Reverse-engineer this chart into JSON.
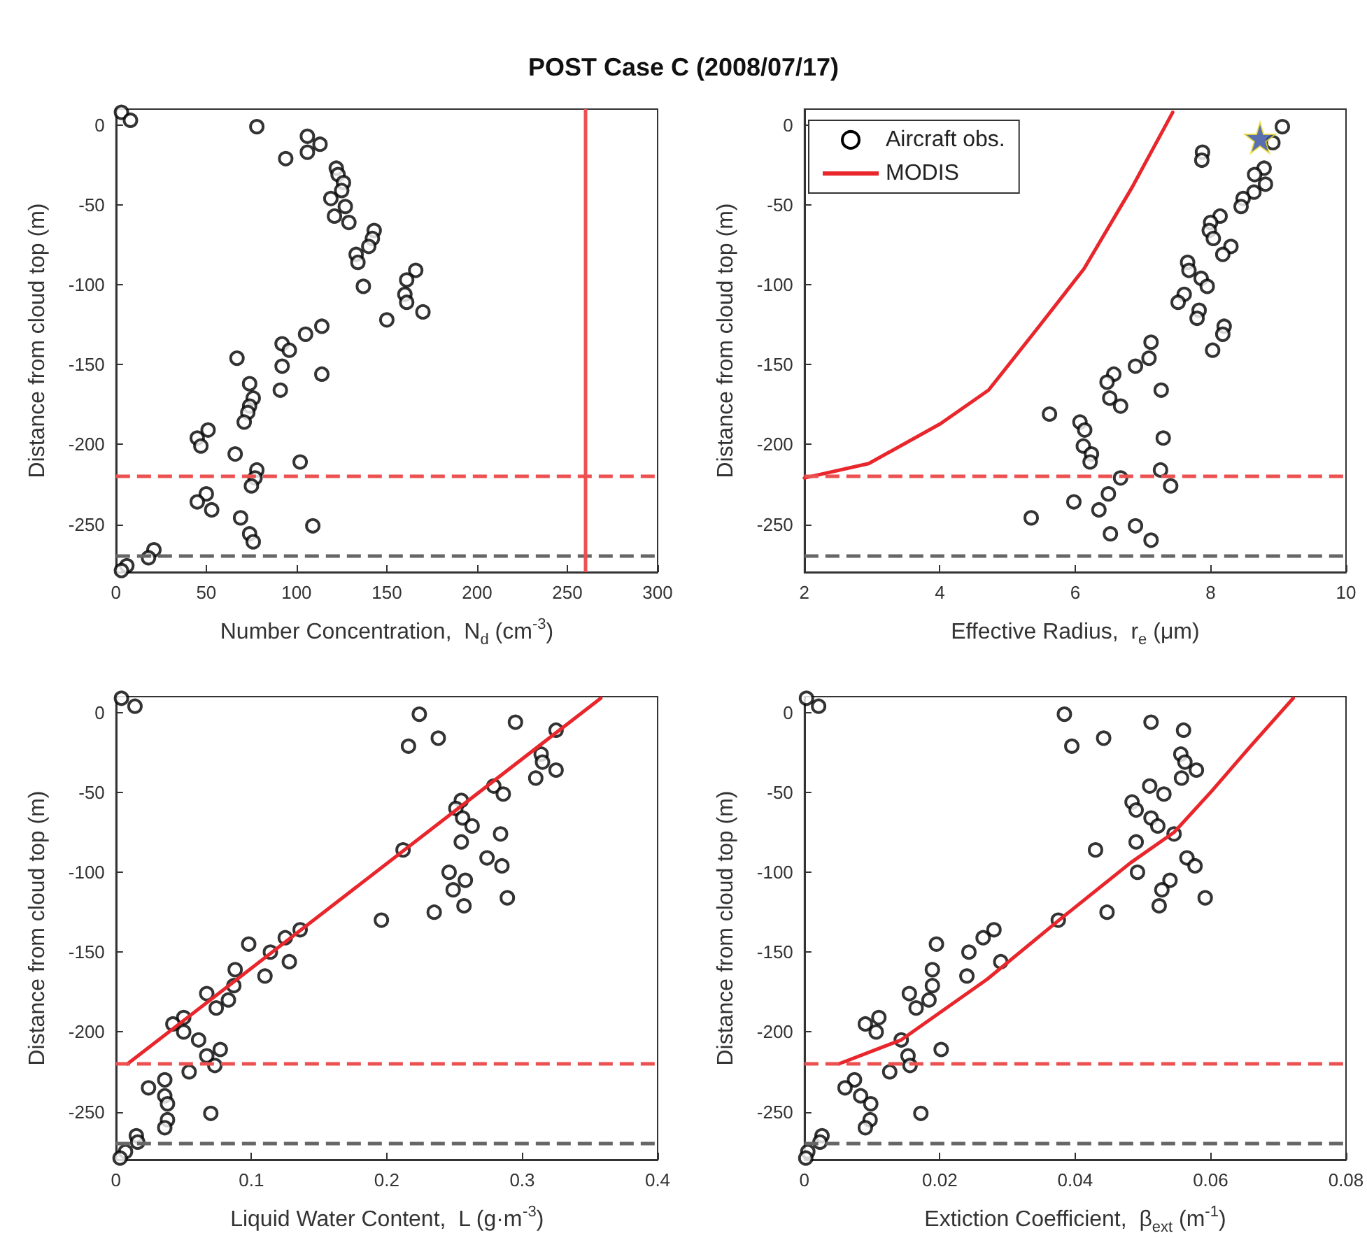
{
  "chart_data": [
    {
      "type": "scatter",
      "title": "POST Case C (2008/07/17)",
      "xlabel": "Number Concentration,  N$_{d}$ (cm$^{-3}$)",
      "ylabel": "Distance from cloud top (m)",
      "xlim": [
        0,
        300
      ],
      "xticks": [
        0,
        50,
        100,
        150,
        200,
        250,
        300
      ],
      "ylim": [
        -280,
        10
      ],
      "yticks": [
        -250,
        -200,
        -150,
        -100,
        -50,
        0
      ],
      "series": [
        {
          "type": "scatter",
          "marker": "circle",
          "color": "#000000",
          "x": [
            3,
            8,
            78,
            106,
            113,
            106,
            94,
            122,
            123,
            126,
            125,
            119,
            127,
            121,
            129,
            143,
            142,
            140,
            133,
            134,
            166,
            161,
            160,
            161,
            170,
            137,
            150,
            114,
            105,
            92,
            96,
            67,
            92,
            114,
            91,
            74,
            76,
            74,
            73,
            71,
            45,
            51,
            47,
            66,
            102,
            78,
            77,
            75,
            50,
            45,
            53,
            69,
            109,
            74,
            76,
            21,
            18,
            6,
            3
          ],
          "values": [
            8,
            3,
            -1,
            -7,
            -12,
            -17,
            -21,
            -27,
            -31,
            -36,
            -41,
            -46,
            -51,
            -57,
            -61,
            -66,
            -71,
            -76,
            -81,
            -86,
            -91,
            -97,
            -106,
            -111,
            -117,
            -101,
            -122,
            -126,
            -131,
            -137,
            -141,
            -146,
            -151,
            -156,
            -166,
            -162,
            -171,
            -176,
            -180,
            -186,
            -196,
            -191,
            -201,
            -206,
            -211,
            -216,
            -221,
            -226,
            -231,
            -236,
            -241,
            -246,
            -251,
            -256,
            -261,
            -266,
            -271,
            -276,
            -279
          ]
        }
      ],
      "ref_lines": [
        {
          "axis": "y",
          "value": -220,
          "color": "#ec5050",
          "line_style": "dashed"
        },
        {
          "axis": "y",
          "value": -270,
          "color": "#666666",
          "line_style": "dashed"
        },
        {
          "axis": "x",
          "value": 260,
          "color": "#ec5050",
          "line_style": "solid"
        }
      ]
    },
    {
      "type": "scatter",
      "xlabel": "Effective Radius,  r$_{e}$ (μm)",
      "ylabel": "Distance from cloud top (m)",
      "xlim": [
        2,
        10
      ],
      "xticks": [
        2,
        4,
        6,
        8,
        10
      ],
      "ylim": [
        -280,
        10
      ],
      "yticks": [
        -250,
        -200,
        -150,
        -100,
        -50,
        0
      ],
      "legend": "top left",
      "series": [
        {
          "name": "Aircraft obs.",
          "type": "scatter",
          "marker": "circle",
          "color": "#000000",
          "x": [
            9.06,
            8.92,
            7.88,
            7.87,
            8.79,
            8.65,
            8.81,
            8.64,
            8.48,
            8.45,
            8.14,
            8.0,
            7.98,
            8.04,
            8.3,
            8.18,
            7.66,
            7.68,
            7.86,
            7.95,
            7.61,
            7.52,
            7.83,
            7.8,
            8.2,
            8.18,
            8.03,
            7.12,
            7.09,
            6.89,
            6.57,
            6.47,
            7.27,
            6.51,
            6.67,
            5.62,
            6.07,
            6.14,
            6.12,
            6.24,
            6.22,
            7.3,
            7.26,
            6.67,
            7.41,
            6.49,
            5.98,
            6.35,
            5.35,
            6.89,
            6.52,
            7.12
          ],
          "values": [
            -1,
            -11,
            -17,
            -22,
            -27,
            -31,
            -37,
            -42,
            -46,
            -51,
            -57,
            -61,
            -66,
            -71,
            -76,
            -81,
            -86,
            -91,
            -96,
            -101,
            -106,
            -111,
            -116,
            -121,
            -126,
            -131,
            -141,
            -136,
            -146,
            -151,
            -156,
            -161,
            -166,
            -171,
            -176,
            -181,
            -186,
            -191,
            -201,
            -206,
            -211,
            -196,
            -216,
            -221,
            -226,
            -231,
            -236,
            -241,
            -246,
            -251,
            -256,
            -260
          ]
        },
        {
          "name": "MODIS",
          "type": "line",
          "color": "#e8262b",
          "x": [
            2.0,
            2.95,
            4.01,
            4.72,
            5.43,
            6.13,
            6.84,
            7.44
          ],
          "values": [
            -221,
            -212,
            -187,
            -166,
            -128,
            -90,
            -39,
            8
          ]
        },
        {
          "type": "scatter",
          "marker": "star",
          "color": "#2f4b9c",
          "x": [
            8.73
          ],
          "values": [
            -8
          ]
        }
      ],
      "ref_lines": [
        {
          "axis": "y",
          "value": -220,
          "color": "#ec5050",
          "line_style": "dashed"
        },
        {
          "axis": "y",
          "value": -270,
          "color": "#666666",
          "line_style": "dashed"
        }
      ]
    },
    {
      "type": "scatter",
      "xlabel": "Liquid Water Content,  L (g·m$^{-3}$)",
      "ylabel": "Distance from cloud top (m)",
      "xlim": [
        0,
        0.4
      ],
      "xticks": [
        0,
        0.1,
        0.2,
        0.3,
        0.4
      ],
      "ylim": [
        -280,
        10
      ],
      "yticks": [
        -250,
        -200,
        -150,
        -100,
        -50,
        0
      ],
      "series": [
        {
          "type": "scatter",
          "marker": "circle",
          "color": "#000000",
          "x": [
            0.004,
            0.014,
            0.224,
            0.216,
            0.238,
            0.295,
            0.325,
            0.314,
            0.315,
            0.325,
            0.31,
            0.279,
            0.286,
            0.255,
            0.251,
            0.256,
            0.263,
            0.284,
            0.255,
            0.212,
            0.274,
            0.285,
            0.246,
            0.258,
            0.249,
            0.289,
            0.257,
            0.235,
            0.196,
            0.136,
            0.125,
            0.114,
            0.098,
            0.128,
            0.11,
            0.088,
            0.087,
            0.083,
            0.067,
            0.074,
            0.05,
            0.042,
            0.05,
            0.061,
            0.067,
            0.077,
            0.073,
            0.054,
            0.036,
            0.024,
            0.036,
            0.038,
            0.07,
            0.038,
            0.036,
            0.015,
            0.016,
            0.007,
            0.003
          ],
          "values": [
            9,
            4,
            -1,
            -21,
            -16,
            -6,
            -11,
            -26,
            -31,
            -36,
            -41,
            -46,
            -51,
            -55,
            -60,
            -66,
            -71,
            -76,
            -81,
            -86,
            -91,
            -96,
            -100,
            -105,
            -111,
            -116,
            -121,
            -125,
            -130,
            -136,
            -141,
            -150,
            -145,
            -156,
            -165,
            -161,
            -171,
            -180,
            -176,
            -185,
            -191,
            -195,
            -200,
            -205,
            -215,
            -211,
            -221,
            -225,
            -230,
            -235,
            -240,
            -245,
            -251,
            -255,
            -260,
            -265,
            -269,
            -275,
            -279
          ]
        },
        {
          "type": "line",
          "color": "#e8262b",
          "x": [
            0.0085,
            0.358
          ],
          "values": [
            -220,
            9
          ]
        }
      ],
      "ref_lines": [
        {
          "axis": "y",
          "value": -220,
          "color": "#ec5050",
          "line_style": "dashed"
        },
        {
          "axis": "y",
          "value": -270,
          "color": "#666666",
          "line_style": "dashed"
        }
      ]
    },
    {
      "type": "scatter",
      "xlabel": "Extiction Coefficient,  β$_{ext}$ (m$^{-1}$)",
      "ylabel": "Distance from cloud top (m)",
      "xlim": [
        0,
        0.08
      ],
      "xticks": [
        0,
        0.02,
        0.04,
        0.06,
        0.08
      ],
      "ylim": [
        -280,
        10
      ],
      "yticks": [
        -250,
        -200,
        -150,
        -100,
        -50,
        0
      ],
      "series": [
        {
          "type": "scatter",
          "marker": "circle",
          "color": "#000000",
          "x": [
            0.0003,
            0.0021,
            0.0384,
            0.0395,
            0.0442,
            0.0512,
            0.056,
            0.0556,
            0.0562,
            0.0579,
            0.0557,
            0.051,
            0.0531,
            0.0484,
            0.049,
            0.0512,
            0.0522,
            0.0546,
            0.049,
            0.043,
            0.0565,
            0.0577,
            0.0492,
            0.054,
            0.0528,
            0.0592,
            0.0524,
            0.0447,
            0.0375,
            0.028,
            0.0264,
            0.0243,
            0.0195,
            0.029,
            0.024,
            0.0189,
            0.0189,
            0.0184,
            0.0155,
            0.0165,
            0.011,
            0.009,
            0.0106,
            0.0143,
            0.0153,
            0.0202,
            0.0156,
            0.0126,
            0.0074,
            0.006,
            0.0083,
            0.0098,
            0.0172,
            0.0097,
            0.009,
            0.0026,
            0.0023,
            0.0005,
            0.0002
          ],
          "values": [
            9,
            4,
            -1,
            -21,
            -16,
            -6,
            -11,
            -26,
            -31,
            -36,
            -41,
            -46,
            -51,
            -56,
            -61,
            -66,
            -71,
            -76,
            -81,
            -86,
            -91,
            -96,
            -100,
            -105,
            -111,
            -116,
            -121,
            -125,
            -130,
            -136,
            -141,
            -150,
            -145,
            -156,
            -165,
            -161,
            -171,
            -180,
            -176,
            -185,
            -191,
            -195,
            -200,
            -205,
            -215,
            -211,
            -221,
            -225,
            -230,
            -235,
            -240,
            -245,
            -251,
            -255,
            -260,
            -265,
            -269,
            -275,
            -279
          ]
        },
        {
          "type": "line",
          "color": "#e8262b",
          "x": [
            0.0051,
            0.0143,
            0.027,
            0.0376,
            0.0482,
            0.0546,
            0.0602,
            0.0659,
            0.0722
          ],
          "values": [
            -220,
            -205,
            -167,
            -130,
            -94,
            -75,
            -49,
            -21,
            9
          ]
        }
      ],
      "ref_lines": [
        {
          "axis": "y",
          "value": -220,
          "color": "#ec5050",
          "line_style": "dashed"
        },
        {
          "axis": "y",
          "value": -270,
          "color": "#666666",
          "line_style": "dashed"
        }
      ]
    }
  ]
}
